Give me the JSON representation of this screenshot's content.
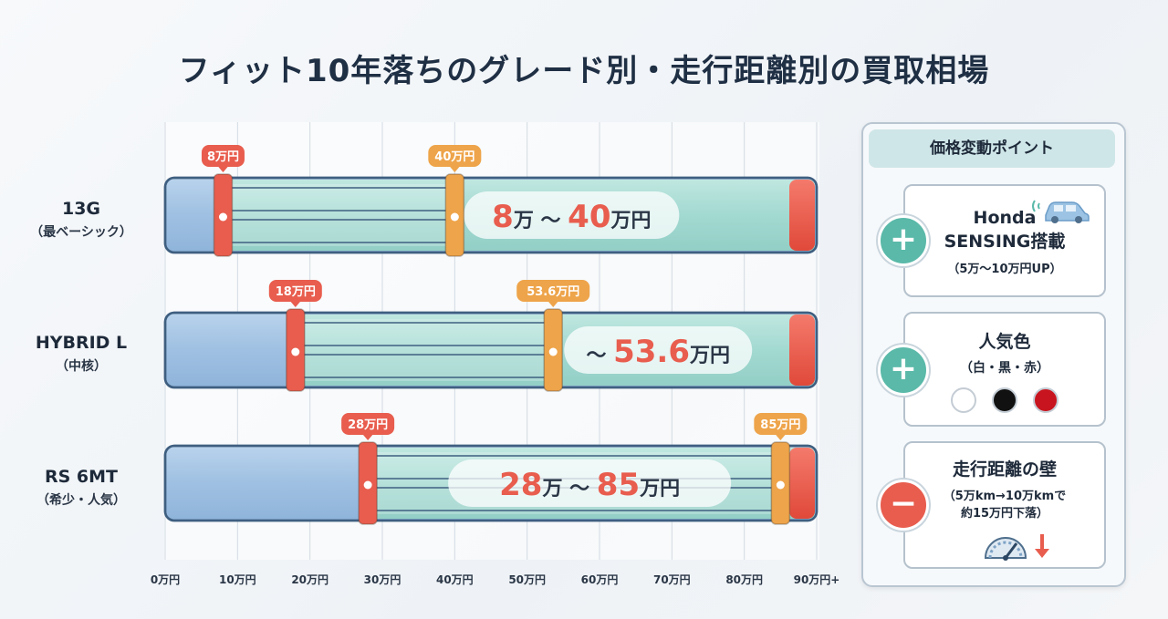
{
  "title": "フィット10年落ちのグレード別・走行距離別の買取相場",
  "chart_data": {
    "type": "bar",
    "orientation": "horizontal-range",
    "categories": [
      {
        "name": "13G",
        "sub": "（最ベーシック）"
      },
      {
        "name": "HYBRID L",
        "sub": "（中核）"
      },
      {
        "name": "RS 6MT",
        "sub": "（希少・人気）"
      }
    ],
    "ranges": [
      {
        "low": 8,
        "high": 40,
        "low_label": "8万円",
        "high_label": "40万円",
        "center_low": "8",
        "center_sep": "万 〜 ",
        "center_high": "40",
        "center_unit": "万円"
      },
      {
        "low": 18,
        "high": 53.6,
        "low_label": "18万円",
        "high_label": "53.6万円",
        "center_low": "",
        "center_sep": "〜 ",
        "center_high": "53.6",
        "center_unit": "万円"
      },
      {
        "low": 28,
        "high": 85,
        "low_label": "28万円",
        "high_label": "85万円",
        "center_low": "28",
        "center_sep": "万 〜 ",
        "center_high": "85",
        "center_unit": "万円"
      }
    ],
    "x_ticks": [
      {
        "v": 0,
        "label": "0万円"
      },
      {
        "v": 10,
        "label": "10万円"
      },
      {
        "v": 20,
        "label": "20万円"
      },
      {
        "v": 30,
        "label": "30万円"
      },
      {
        "v": 40,
        "label": "40万円"
      },
      {
        "v": 50,
        "label": "50万円"
      },
      {
        "v": 60,
        "label": "60万円"
      },
      {
        "v": 70,
        "label": "70万円"
      },
      {
        "v": 80,
        "label": "80万円"
      },
      {
        "v": 90,
        "label": "90万円+"
      }
    ],
    "xlim": [
      0,
      90
    ],
    "grid": true,
    "colors": {
      "low": "#e85d4e",
      "high": "#eea44a",
      "bar_base": "#a9c8e6",
      "bar_fill": "#a6ddd6",
      "accent": "#e85d4e"
    }
  },
  "panel": {
    "header": "価格変動ポイント",
    "cards": [
      {
        "sign": "+",
        "title1": "Honda",
        "title2": "SENSING搭載",
        "sub": "（5万〜10万円UP）",
        "icon": "car-sensor-icon"
      },
      {
        "sign": "+",
        "title1": "人気色",
        "sub": "（白・黒・赤）",
        "colors": [
          "#ffffff",
          "#111111",
          "#c8141e"
        ]
      },
      {
        "sign": "−",
        "title1": "走行距離の壁",
        "sub": "（5万km→10万kmで",
        "sub2": "約15万円下落）",
        "icon": "speedometer-down-icon"
      }
    ]
  }
}
